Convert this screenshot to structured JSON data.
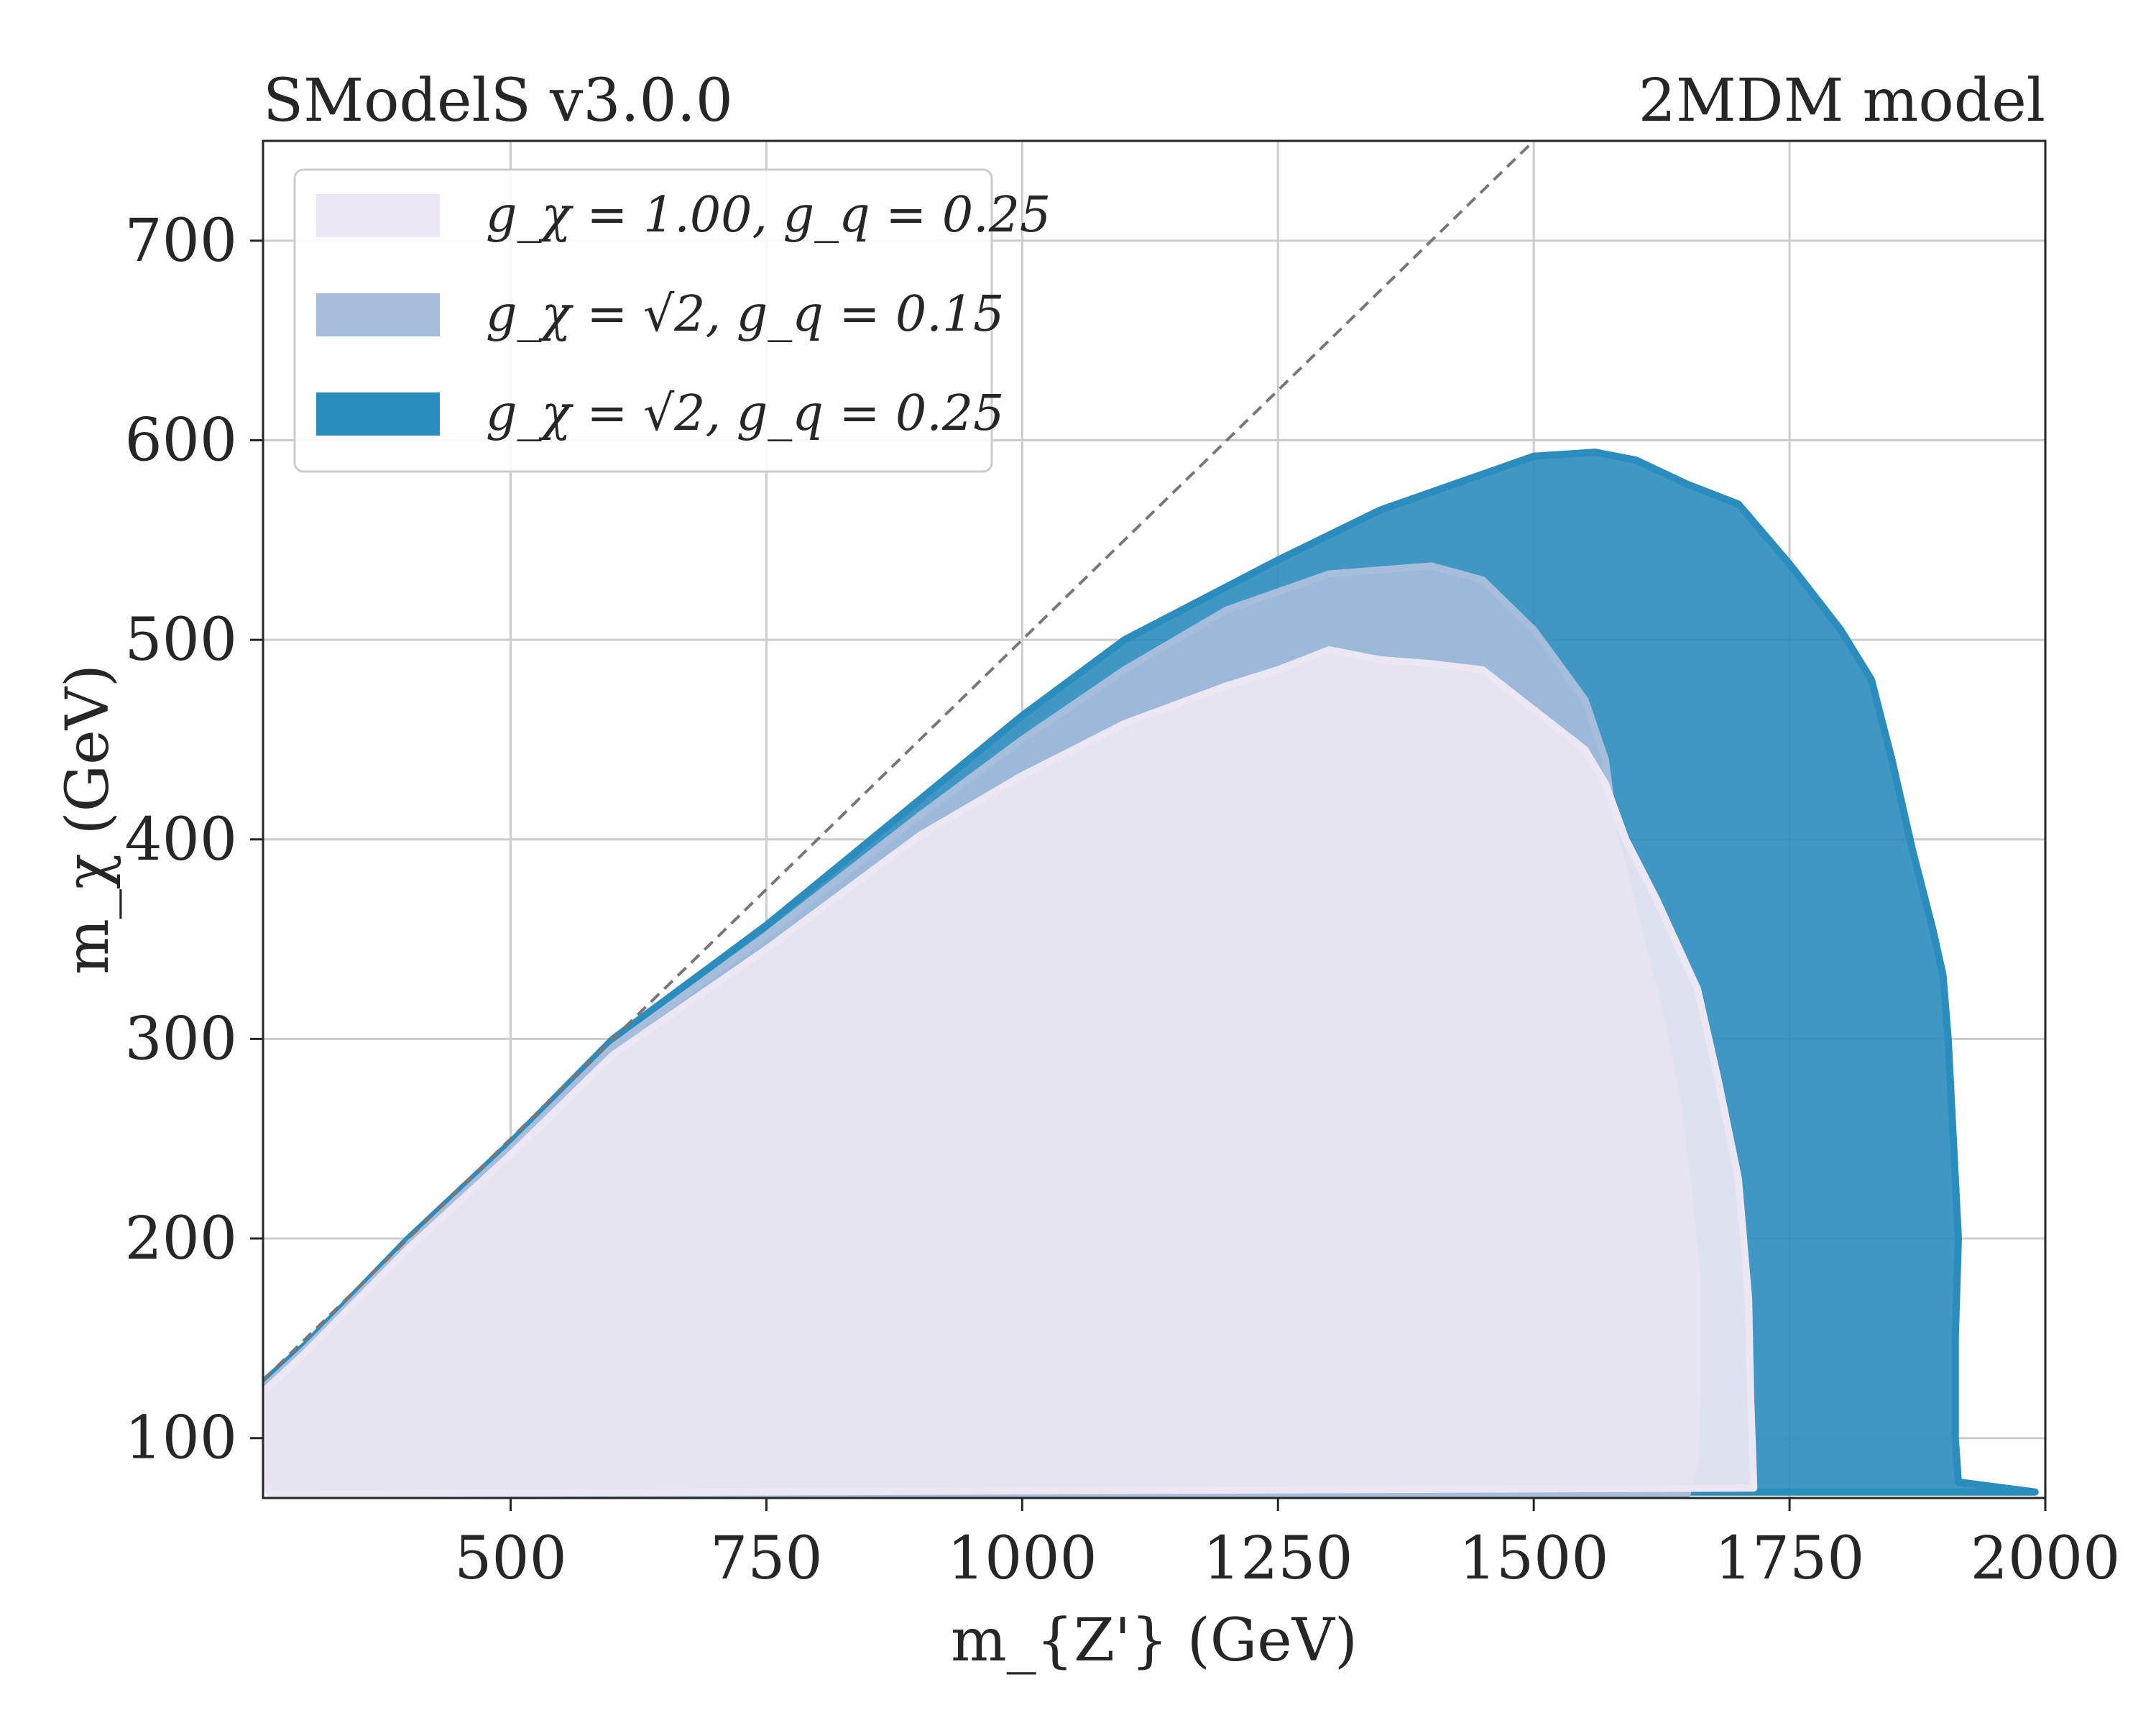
{
  "chart_data": {
    "type": "area",
    "title_left": "SModelS v3.0.0",
    "title_right": "2MDM model",
    "xlabel": "m_{Z'} (GeV)",
    "ylabel": "m_χ (GeV)",
    "xlim": [
      258,
      2000
    ],
    "ylim": [
      70,
      750
    ],
    "xticks": [
      500,
      750,
      1000,
      1250,
      1500,
      1750,
      2000
    ],
    "yticks": [
      100,
      200,
      300,
      400,
      500,
      600,
      700
    ],
    "grid": true,
    "legend_position": "top-left",
    "diagonal_line": {
      "style": "dashed",
      "color": "#777777",
      "relation": "y = x / 2"
    },
    "series": [
      {
        "name": "g_χ = √2, g_q = 0.25",
        "color": "#2b8cbe",
        "opacity": 0.9,
        "boundary": [
          [
            258,
            128
          ],
          [
            300,
            147
          ],
          [
            400,
            200
          ],
          [
            500,
            248
          ],
          [
            600,
            300
          ],
          [
            750,
            357
          ],
          [
            900,
            420
          ],
          [
            1000,
            462
          ],
          [
            1100,
            500
          ],
          [
            1250,
            540
          ],
          [
            1350,
            565
          ],
          [
            1450,
            583
          ],
          [
            1500,
            592
          ],
          [
            1560,
            594
          ],
          [
            1600,
            590
          ],
          [
            1650,
            578
          ],
          [
            1700,
            568
          ],
          [
            1750,
            538
          ],
          [
            1800,
            505
          ],
          [
            1830,
            480
          ],
          [
            1850,
            440
          ],
          [
            1870,
            395
          ],
          [
            1890,
            355
          ],
          [
            1900,
            332
          ],
          [
            1905,
            300
          ],
          [
            1910,
            250
          ],
          [
            1915,
            200
          ],
          [
            1912,
            150
          ],
          [
            1912,
            100
          ],
          [
            1915,
            78
          ],
          [
            1990,
            73
          ],
          [
            270,
            73
          ],
          [
            258,
            80
          ]
        ]
      },
      {
        "name": "g_χ = √2, g_q = 0.15",
        "color": "#a6bddb",
        "opacity": 0.9,
        "boundary": [
          [
            258,
            125
          ],
          [
            300,
            145
          ],
          [
            400,
            197
          ],
          [
            500,
            245
          ],
          [
            600,
            296
          ],
          [
            750,
            352
          ],
          [
            900,
            412
          ],
          [
            1000,
            450
          ],
          [
            1100,
            485
          ],
          [
            1200,
            515
          ],
          [
            1300,
            533
          ],
          [
            1400,
            537
          ],
          [
            1450,
            530
          ],
          [
            1500,
            505
          ],
          [
            1550,
            470
          ],
          [
            1570,
            440
          ],
          [
            1580,
            400
          ],
          [
            1600,
            360
          ],
          [
            1620,
            320
          ],
          [
            1640,
            270
          ],
          [
            1650,
            230
          ],
          [
            1660,
            180
          ],
          [
            1660,
            130
          ],
          [
            1658,
            90
          ],
          [
            1650,
            72
          ],
          [
            265,
            72
          ],
          [
            258,
            85
          ]
        ]
      },
      {
        "name": "g_χ = 1.00, g_q = 0.25",
        "color": "#ece7f2",
        "opacity": 0.92,
        "boundary": [
          [
            258,
            123
          ],
          [
            300,
            143
          ],
          [
            400,
            195
          ],
          [
            500,
            242
          ],
          [
            600,
            292
          ],
          [
            750,
            345
          ],
          [
            900,
            402
          ],
          [
            1000,
            432
          ],
          [
            1100,
            458
          ],
          [
            1200,
            477
          ],
          [
            1250,
            485
          ],
          [
            1300,
            495
          ],
          [
            1350,
            490
          ],
          [
            1400,
            488
          ],
          [
            1450,
            485
          ],
          [
            1500,
            465
          ],
          [
            1550,
            445
          ],
          [
            1570,
            428
          ],
          [
            1590,
            400
          ],
          [
            1620,
            370
          ],
          [
            1660,
            325
          ],
          [
            1680,
            280
          ],
          [
            1700,
            230
          ],
          [
            1710,
            170
          ],
          [
            1712,
            120
          ],
          [
            1715,
            75
          ],
          [
            265,
            72
          ],
          [
            258,
            80
          ]
        ]
      }
    ]
  },
  "legend": {
    "items": [
      {
        "label": "g_χ = 1.00, g_q = 0.25",
        "color": "#ece7f2"
      },
      {
        "label": "g_χ = √2, g_q = 0.15",
        "color": "#a6bddb"
      },
      {
        "label": "g_χ = √2, g_q = 0.25",
        "color": "#2b8cbe"
      }
    ]
  }
}
